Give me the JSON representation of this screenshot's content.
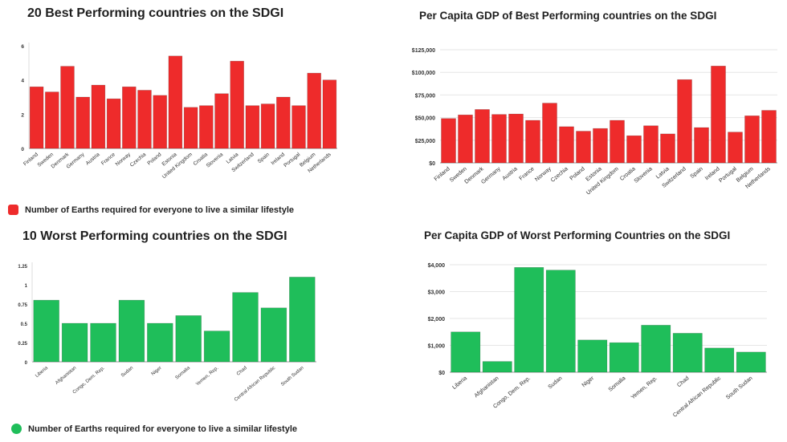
{
  "colors": {
    "red": "#ee2b2b",
    "green": "#1fbe5a",
    "grid": "#e6e6e6",
    "axis": "#999999"
  },
  "chart_data": [
    {
      "type": "bar",
      "title": "20 Best Performing countries on the SDGI",
      "categories": [
        "Finland",
        "Sweden",
        "Denmark",
        "Germany",
        "Austria",
        "France",
        "Norway",
        "Czechia",
        "Poland",
        "Estonia",
        "United Kingdom",
        "Croatia",
        "Slovenia",
        "Latvia",
        "Switzerland",
        "Spain",
        "Ireland",
        "Portugal",
        "Belgium",
        "Netherlands"
      ],
      "series": [
        {
          "name": "Number of Earths required for everyone to live a similar lifestyle",
          "values": [
            3.6,
            3.3,
            4.8,
            3.0,
            3.7,
            2.9,
            3.6,
            3.4,
            3.1,
            5.4,
            2.4,
            2.5,
            3.2,
            5.1,
            2.5,
            2.6,
            3.0,
            2.5,
            4.4,
            4.0
          ]
        }
      ],
      "yticks": [
        "0",
        "2",
        "4",
        "6"
      ],
      "ylim": [
        0,
        6
      ],
      "grid": false,
      "legend": "bottom-left"
    },
    {
      "type": "bar",
      "title": "Per Capita GDP of Best Performing countries on the SDGI",
      "categories": [
        "Finland",
        "Sweden",
        "Denmark",
        "Germany",
        "Austria",
        "France",
        "Norway",
        "Czechia",
        "Poland",
        "Estonia",
        "United Kingdom",
        "Croatia",
        "Slovenia",
        "Latvia",
        "Switzerland",
        "Spain",
        "Ireland",
        "Portugal",
        "Belgium",
        "Netherlands"
      ],
      "series": [
        {
          "values": [
            49000,
            53000,
            59000,
            53500,
            54000,
            47000,
            66000,
            40000,
            35000,
            38000,
            47000,
            30000,
            41000,
            32000,
            92000,
            39000,
            107000,
            34000,
            52000,
            58000
          ]
        }
      ],
      "yticks": [
        "$0",
        "$25,000",
        "$50,000",
        "$75,000",
        "$100,000",
        "$125,000"
      ],
      "ylim": [
        0,
        125000
      ],
      "grid": true
    },
    {
      "type": "bar",
      "title": "10 Worst Performing countries on the SDGI",
      "categories": [
        "Liberia",
        "Afghanistan",
        "Congo, Dem. Rep.",
        "Sudan",
        "Niger",
        "Somalia",
        "Yemen, Rep.",
        "Chad",
        "Central African Republic",
        "South Sudan"
      ],
      "series": [
        {
          "name": "Number of Earths required for everyone to live a similar lifestyle",
          "values": [
            0.8,
            0.5,
            0.5,
            0.8,
            0.5,
            0.6,
            0.4,
            0.9,
            0.7,
            1.1
          ]
        }
      ],
      "yticks": [
        "0",
        "0.25",
        "0.5",
        "0.75",
        "1",
        "1.25"
      ],
      "ylim": [
        0,
        1.25
      ],
      "grid": false,
      "legend": "bottom-left"
    },
    {
      "type": "bar",
      "title": "Per Capita GDP of Worst Performing Countries on the SDGI",
      "categories": [
        "Liberia",
        "Afghanistan",
        "Congo, Dem. Rep.",
        "Sudan",
        "Niger",
        "Somalia",
        "Yemen, Rep.",
        "Chad",
        "Central African Republic",
        "South Sudan"
      ],
      "series": [
        {
          "values": [
            1500,
            400,
            3900,
            3800,
            1200,
            1100,
            1750,
            1450,
            900,
            750
          ]
        }
      ],
      "yticks": [
        "$0",
        "$1,000",
        "$2,000",
        "$3,000",
        "$4,000"
      ],
      "ylim": [
        0,
        4000
      ],
      "grid": true
    }
  ]
}
